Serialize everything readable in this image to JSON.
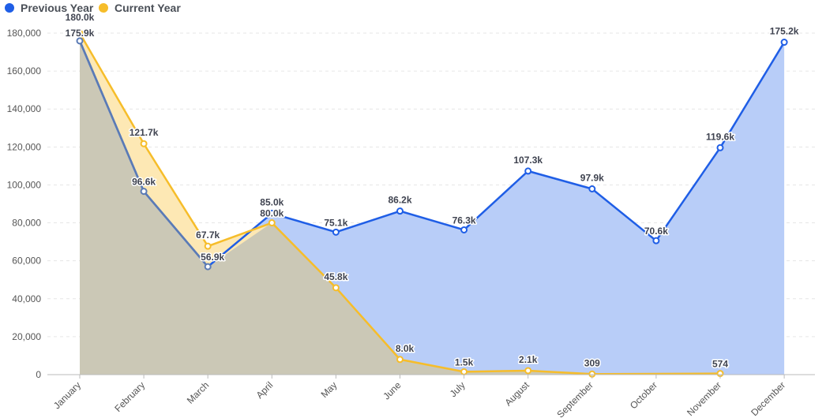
{
  "chart_data": {
    "type": "area",
    "categories": [
      "January",
      "February",
      "March",
      "April",
      "May",
      "June",
      "July",
      "August",
      "September",
      "October",
      "November",
      "December"
    ],
    "series": [
      {
        "name": "Previous Year",
        "color": "#1f5ee6",
        "fill": "#b8cdf8",
        "values": [
          175900,
          96600,
          56900,
          85000,
          75100,
          86200,
          76300,
          107300,
          97900,
          70600,
          119600,
          175200
        ],
        "labels": [
          "175.9k",
          "96.6k",
          "56.9k",
          "85.0k",
          "75.1k",
          "86.2k",
          "76.3k",
          "107.3k",
          "97.9k",
          "70.6k",
          "119.6k",
          "175.2k"
        ]
      },
      {
        "name": "Current Year",
        "color": "#f6bd2a",
        "fill": "#fde8b4",
        "values": [
          180000,
          121700,
          67700,
          80000,
          45800,
          8000,
          1500,
          2100,
          309,
          null,
          574,
          null
        ],
        "labels": [
          "180.0k",
          "121.7k",
          "67.7k",
          "80.0k",
          "45.8k",
          "8.0k",
          "1.5k",
          "2.1k",
          "309",
          "",
          "574",
          ""
        ]
      }
    ],
    "overlap_fill": "#cbc8b6",
    "overlap_stroke": "#5b7bb5",
    "yticks": [
      "0",
      "20,000",
      "40,000",
      "60,000",
      "80,000",
      "100,000",
      "120,000",
      "140,000",
      "160,000",
      "180,000"
    ],
    "ylim": [
      0,
      180000
    ],
    "grid": true,
    "legend_position": "top-left"
  }
}
